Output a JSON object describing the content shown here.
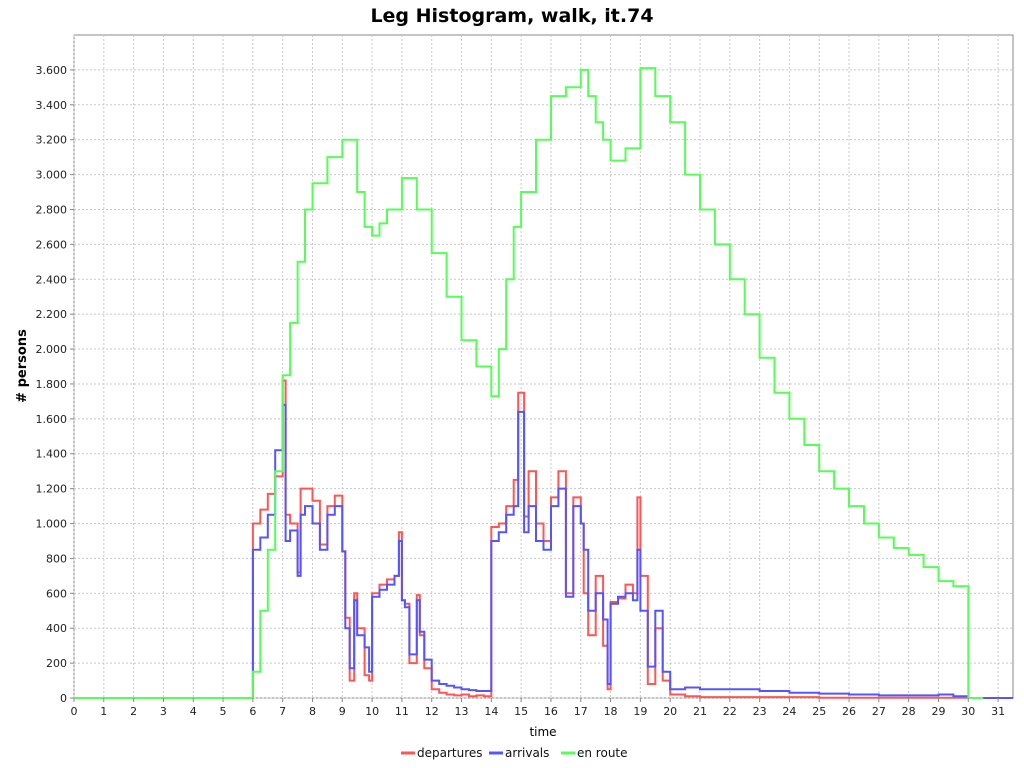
{
  "chart_data": {
    "type": "line",
    "step": true,
    "title": "Leg Histogram, walk, it.74",
    "xlabel": "time",
    "ylabel": "# persons",
    "xlim": [
      0,
      31.5
    ],
    "ylim": [
      0,
      3800
    ],
    "x_ticks": [
      0,
      1,
      2,
      3,
      4,
      5,
      6,
      7,
      8,
      9,
      10,
      11,
      12,
      13,
      14,
      15,
      16,
      17,
      18,
      19,
      20,
      21,
      22,
      23,
      24,
      25,
      26,
      27,
      28,
      29,
      30,
      31
    ],
    "y_ticks": [
      0,
      200,
      400,
      600,
      800,
      1000,
      1200,
      1400,
      1600,
      1800,
      2000,
      2200,
      2400,
      2600,
      2800,
      3000,
      3200,
      3400,
      3600
    ],
    "y_tick_labels": [
      "0",
      "200",
      "400",
      "600",
      "800",
      "1.000",
      "1.200",
      "1.400",
      "1.600",
      "1.800",
      "2.000",
      "2.200",
      "2.400",
      "2.600",
      "2.800",
      "3.000",
      "3.200",
      "3.400",
      "3.600"
    ],
    "grid": true,
    "legend_position": "bottom",
    "series": [
      {
        "name": "departures",
        "color": "#ff5555",
        "points": [
          [
            0,
            0
          ],
          [
            6,
            0
          ],
          [
            6,
            1000
          ],
          [
            6.25,
            1080
          ],
          [
            6.5,
            1170
          ],
          [
            6.75,
            1270
          ],
          [
            7,
            1820
          ],
          [
            7.1,
            1050
          ],
          [
            7.25,
            1000
          ],
          [
            7.5,
            720
          ],
          [
            7.6,
            1200
          ],
          [
            7.75,
            1200
          ],
          [
            8,
            1130
          ],
          [
            8.25,
            880
          ],
          [
            8.5,
            1100
          ],
          [
            8.75,
            1160
          ],
          [
            9,
            840
          ],
          [
            9.1,
            460
          ],
          [
            9.25,
            100
          ],
          [
            9.4,
            600
          ],
          [
            9.5,
            400
          ],
          [
            9.75,
            130
          ],
          [
            9.9,
            100
          ],
          [
            10,
            600
          ],
          [
            10.25,
            650
          ],
          [
            10.5,
            680
          ],
          [
            10.75,
            700
          ],
          [
            10.9,
            950
          ],
          [
            11,
            560
          ],
          [
            11.1,
            540
          ],
          [
            11.25,
            200
          ],
          [
            11.5,
            590
          ],
          [
            11.6,
            360
          ],
          [
            11.75,
            170
          ],
          [
            12,
            50
          ],
          [
            12.25,
            30
          ],
          [
            12.5,
            20
          ],
          [
            12.75,
            15
          ],
          [
            13,
            20
          ],
          [
            13.25,
            10
          ],
          [
            13.5,
            15
          ],
          [
            13.75,
            10
          ],
          [
            14,
            980
          ],
          [
            14.25,
            1000
          ],
          [
            14.5,
            1100
          ],
          [
            14.75,
            1250
          ],
          [
            14.9,
            1750
          ],
          [
            15.1,
            1040
          ],
          [
            15.25,
            1300
          ],
          [
            15.5,
            1000
          ],
          [
            15.75,
            900
          ],
          [
            16,
            1150
          ],
          [
            16.25,
            1300
          ],
          [
            16.5,
            600
          ],
          [
            16.75,
            1150
          ],
          [
            17,
            1000
          ],
          [
            17.1,
            600
          ],
          [
            17.25,
            360
          ],
          [
            17.5,
            700
          ],
          [
            17.75,
            300
          ],
          [
            17.9,
            50
          ],
          [
            18,
            550
          ],
          [
            18.25,
            570
          ],
          [
            18.5,
            650
          ],
          [
            18.75,
            600
          ],
          [
            18.9,
            1150
          ],
          [
            19,
            700
          ],
          [
            19.25,
            80
          ],
          [
            19.5,
            400
          ],
          [
            19.75,
            100
          ],
          [
            20,
            20
          ],
          [
            20.5,
            10
          ],
          [
            21,
            5
          ],
          [
            22,
            5
          ],
          [
            25,
            2
          ],
          [
            30,
            0
          ],
          [
            30.5,
            0
          ],
          [
            31.5,
            0
          ]
        ]
      },
      {
        "name": "arrivals",
        "color": "#5555ff",
        "points": [
          [
            0,
            0
          ],
          [
            6,
            0
          ],
          [
            6,
            850
          ],
          [
            6.25,
            920
          ],
          [
            6.5,
            1050
          ],
          [
            6.75,
            1420
          ],
          [
            7,
            1680
          ],
          [
            7.1,
            900
          ],
          [
            7.25,
            960
          ],
          [
            7.5,
            700
          ],
          [
            7.6,
            1050
          ],
          [
            7.75,
            1100
          ],
          [
            8,
            1000
          ],
          [
            8.25,
            850
          ],
          [
            8.5,
            1050
          ],
          [
            8.75,
            1100
          ],
          [
            9,
            840
          ],
          [
            9.1,
            400
          ],
          [
            9.25,
            170
          ],
          [
            9.4,
            560
          ],
          [
            9.5,
            360
          ],
          [
            9.75,
            290
          ],
          [
            9.9,
            150
          ],
          [
            10,
            580
          ],
          [
            10.25,
            620
          ],
          [
            10.5,
            650
          ],
          [
            10.75,
            700
          ],
          [
            10.9,
            900
          ],
          [
            11,
            560
          ],
          [
            11.1,
            520
          ],
          [
            11.25,
            250
          ],
          [
            11.5,
            560
          ],
          [
            11.6,
            380
          ],
          [
            11.75,
            220
          ],
          [
            12,
            100
          ],
          [
            12.25,
            80
          ],
          [
            12.5,
            70
          ],
          [
            12.75,
            60
          ],
          [
            13,
            50
          ],
          [
            13.25,
            45
          ],
          [
            13.5,
            40
          ],
          [
            13.75,
            40
          ],
          [
            14,
            900
          ],
          [
            14.25,
            950
          ],
          [
            14.5,
            1050
          ],
          [
            14.75,
            1100
          ],
          [
            14.9,
            1640
          ],
          [
            15.1,
            950
          ],
          [
            15.25,
            1100
          ],
          [
            15.5,
            900
          ],
          [
            15.75,
            850
          ],
          [
            16,
            1100
          ],
          [
            16.25,
            1200
          ],
          [
            16.5,
            580
          ],
          [
            16.75,
            1100
          ],
          [
            17,
            1000
          ],
          [
            17.1,
            850
          ],
          [
            17.25,
            500
          ],
          [
            17.5,
            600
          ],
          [
            17.75,
            450
          ],
          [
            17.9,
            80
          ],
          [
            18,
            540
          ],
          [
            18.25,
            580
          ],
          [
            18.5,
            600
          ],
          [
            18.75,
            560
          ],
          [
            18.9,
            850
          ],
          [
            19,
            500
          ],
          [
            19.25,
            180
          ],
          [
            19.5,
            500
          ],
          [
            19.75,
            150
          ],
          [
            20,
            50
          ],
          [
            20.5,
            60
          ],
          [
            21,
            50
          ],
          [
            22,
            50
          ],
          [
            23,
            40
          ],
          [
            24,
            30
          ],
          [
            25,
            25
          ],
          [
            26,
            20
          ],
          [
            27,
            15
          ],
          [
            28,
            15
          ],
          [
            29,
            20
          ],
          [
            29.5,
            10
          ],
          [
            30,
            0
          ],
          [
            30.5,
            0
          ],
          [
            31.5,
            0
          ]
        ]
      },
      {
        "name": "en route",
        "color": "#55ff55",
        "points": [
          [
            0,
            0
          ],
          [
            6,
            0
          ],
          [
            6,
            150
          ],
          [
            6.25,
            500
          ],
          [
            6.5,
            850
          ],
          [
            6.75,
            1300
          ],
          [
            7,
            1850
          ],
          [
            7.25,
            2150
          ],
          [
            7.5,
            2500
          ],
          [
            7.75,
            2800
          ],
          [
            8,
            2950
          ],
          [
            8.5,
            3100
          ],
          [
            9,
            3200
          ],
          [
            9.5,
            2900
          ],
          [
            9.75,
            2700
          ],
          [
            10,
            2650
          ],
          [
            10.25,
            2720
          ],
          [
            10.5,
            2800
          ],
          [
            11,
            2980
          ],
          [
            11.5,
            2800
          ],
          [
            12,
            2550
          ],
          [
            12.5,
            2300
          ],
          [
            13,
            2050
          ],
          [
            13.5,
            1900
          ],
          [
            14,
            1730
          ],
          [
            14.25,
            2000
          ],
          [
            14.5,
            2400
          ],
          [
            14.75,
            2700
          ],
          [
            15,
            2900
          ],
          [
            15.5,
            3200
          ],
          [
            16,
            3450
          ],
          [
            16.5,
            3500
          ],
          [
            17,
            3600
          ],
          [
            17.25,
            3450
          ],
          [
            17.5,
            3300
          ],
          [
            17.75,
            3200
          ],
          [
            18,
            3080
          ],
          [
            18.5,
            3150
          ],
          [
            19,
            3610
          ],
          [
            19.5,
            3450
          ],
          [
            20,
            3300
          ],
          [
            20.5,
            3000
          ],
          [
            21,
            2800
          ],
          [
            21.5,
            2600
          ],
          [
            22,
            2400
          ],
          [
            22.5,
            2200
          ],
          [
            23,
            1950
          ],
          [
            23.5,
            1750
          ],
          [
            24,
            1600
          ],
          [
            24.5,
            1450
          ],
          [
            25,
            1300
          ],
          [
            25.5,
            1200
          ],
          [
            26,
            1100
          ],
          [
            26.5,
            1000
          ],
          [
            27,
            920
          ],
          [
            27.5,
            860
          ],
          [
            28,
            820
          ],
          [
            28.5,
            750
          ],
          [
            29,
            670
          ],
          [
            29.5,
            640
          ],
          [
            30,
            600
          ],
          [
            30,
            0
          ],
          [
            30.5,
            0
          ]
        ]
      }
    ]
  }
}
